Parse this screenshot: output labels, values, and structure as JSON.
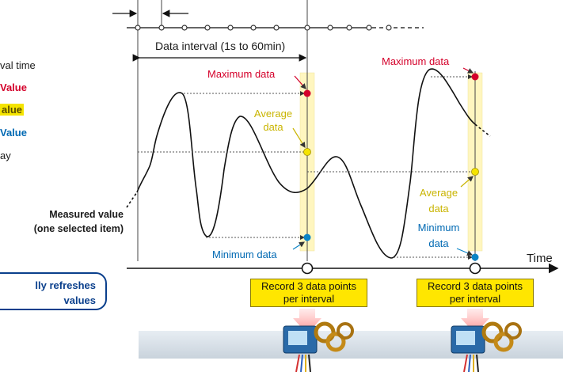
{
  "sidebar": {
    "line1": "val time",
    "line2": "Value",
    "line3": "alue",
    "line4": "Value",
    "line5": "ay"
  },
  "refresh_box": {
    "line1": "lly refreshes",
    "line2": "values"
  },
  "axis": {
    "y_label_line1": "Measured value",
    "y_label_line2": "(one selected item)",
    "x_label": "Time"
  },
  "interval_label": "Data interval (1s to 60min)",
  "interval1": {
    "max": "Maximum data",
    "avg_line1": "Average",
    "avg_line2": "data",
    "min": "Minimum data"
  },
  "interval2": {
    "max": "Maximum data",
    "avg_line1": "Average",
    "avg_line2": "data",
    "min_line1": "Minimum",
    "min_line2": "data"
  },
  "record_box": {
    "line1": "Record 3 data points",
    "line2": "per interval"
  },
  "colors": {
    "max": "#d4002a",
    "avg": "#f5e400",
    "min": "#0a84c6",
    "highlight": "#fff6bf"
  }
}
